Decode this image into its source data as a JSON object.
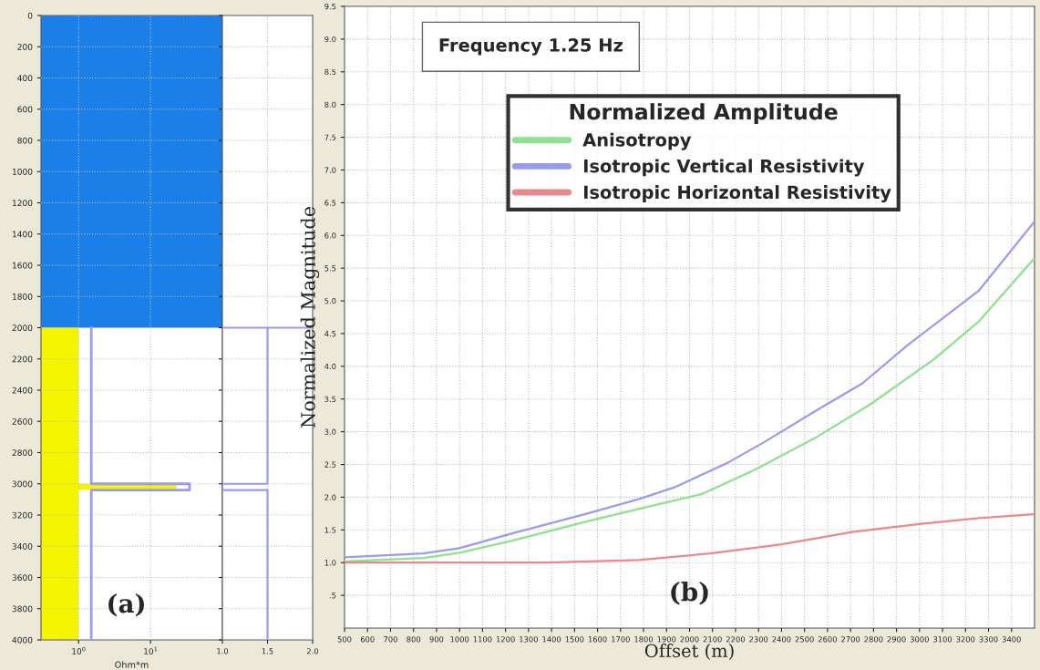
{
  "chart_data": [
    {
      "type": "line",
      "xlabel": "Ohm*m",
      "log": "x",
      "xlim": [
        0.3,
        100
      ],
      "xticks": [
        {
          "value": 1,
          "label": "10$^{0}$"
        },
        {
          "value": 10,
          "label": "10$^{1}$"
        }
      ],
      "ylim": [
        4000,
        0
      ],
      "yticks": [
        0,
        200,
        400,
        600,
        800,
        1000,
        1200,
        1400,
        1600,
        1800,
        2000,
        2200,
        2400,
        2600,
        2800,
        3000,
        3200,
        3400,
        3600,
        3800,
        4000
      ],
      "grid": true,
      "annotations": [
        "(a)"
      ],
      "bands": [
        {
          "axis": "y",
          "from": 0,
          "to": 2000,
          "color": "#1a7fe8"
        }
      ],
      "series": [
        {
          "type": "area",
          "color": "#f5f500",
          "x": [
            0.3,
            1,
            1,
            23,
            23,
            1,
            1,
            0.3
          ],
          "values": [
            2000,
            2000,
            3000,
            3000,
            3040,
            3040,
            4000,
            4000
          ]
        },
        {
          "type": "line",
          "color": "#9a9aee",
          "x": [
            1.5,
            1.5,
            35,
            35,
            1.5,
            1.5
          ],
          "values": [
            2000,
            3000,
            3000,
            3040,
            3040,
            4000
          ]
        }
      ]
    },
    {
      "type": "line",
      "xlim": [
        1.0,
        2.0
      ],
      "xticks": [
        {
          "value": 1,
          "label": "1.0"
        },
        1.5,
        {
          "value": 2,
          "label": "2.0"
        }
      ],
      "ylim": [
        4000,
        0
      ],
      "yticks": [
        0,
        200,
        400,
        600,
        800,
        1000,
        1200,
        1400,
        1600,
        1800,
        2000,
        2200,
        2400,
        2600,
        2800,
        3000,
        3200,
        3400,
        3600,
        3800,
        4000
      ],
      "tick_labels": "x",
      "grid": true,
      "series": [
        {
          "type": "line",
          "color": "#9a9aee",
          "x": [
            1.0,
            2.0
          ],
          "values": [
            2000,
            2000
          ]
        },
        {
          "type": "line",
          "color": "#9a9aee",
          "x": [
            1.5,
            1.5,
            1.0,
            1.0,
            1.5,
            1.5
          ],
          "values": [
            2000,
            3000,
            3000,
            3040,
            3040,
            4000
          ]
        }
      ]
    },
    {
      "type": "line",
      "xlabel": "Offset (m)",
      "ylabel": "Normalized Magnitude",
      "legend_title": "Normalized Amplitude",
      "legend": "top",
      "grid": true,
      "xlim": [
        500,
        3500
      ],
      "xticks": [
        500,
        600,
        700,
        800,
        900,
        1000,
        1100,
        1200,
        1300,
        1400,
        1500,
        1600,
        1700,
        1800,
        1900,
        2000,
        2100,
        2200,
        2300,
        2400,
        2500,
        2600,
        2700,
        2800,
        2900,
        3000,
        3100,
        3200,
        3300,
        3400
      ],
      "ylim": [
        0,
        9.5
      ],
      "yticks": [
        {
          "value": 0.5,
          "label": ".5"
        },
        {
          "value": 1,
          "label": "1.0"
        },
        1.5,
        {
          "value": 2,
          "label": "2.0"
        },
        2.5,
        {
          "value": 3,
          "label": "3.0"
        },
        3.5,
        {
          "value": 4,
          "label": "4.0"
        },
        4.5,
        {
          "value": 5,
          "label": "5.0"
        },
        5.5,
        {
          "value": 6,
          "label": "6.0"
        },
        6.5,
        {
          "value": 7,
          "label": "7.0"
        },
        7.5,
        {
          "value": 8,
          "label": "8.0"
        },
        8.5,
        {
          "value": 9,
          "label": "9.0"
        },
        9.5
      ],
      "annotations": [
        "Frequency 1.25 Hz",
        "(b)"
      ],
      "series": [
        {
          "name": "Anisotropy",
          "color": "#8fe08f",
          "x": [
            500,
            843,
            999,
            1233,
            1544,
            1778,
            2056,
            2285,
            2558,
            2791,
            3064,
            3259,
            3497
          ],
          "values": [
            1.02,
            1.07,
            1.15,
            1.34,
            1.62,
            1.82,
            2.05,
            2.42,
            2.93,
            3.43,
            4.11,
            4.69,
            5.64
          ]
        },
        {
          "name": "Isotropic Vertical Resistivity",
          "color": "#9a9aee",
          "x": [
            500,
            843,
            999,
            1233,
            1544,
            1778,
            1934,
            2168,
            2324,
            2558,
            2752,
            2947,
            3259,
            3497
          ],
          "values": [
            1.08,
            1.14,
            1.22,
            1.45,
            1.74,
            1.97,
            2.15,
            2.53,
            2.84,
            3.34,
            3.74,
            4.32,
            5.16,
            6.2
          ]
        },
        {
          "name": "Isotropic Horizontal Resistivity",
          "color": "#e88a8a",
          "x": [
            500,
            1389,
            1778,
            2090,
            2402,
            2713,
            3025,
            3259,
            3497
          ],
          "values": [
            1.0,
            1.0,
            1.04,
            1.14,
            1.28,
            1.47,
            1.6,
            1.68,
            1.74
          ]
        }
      ]
    }
  ]
}
